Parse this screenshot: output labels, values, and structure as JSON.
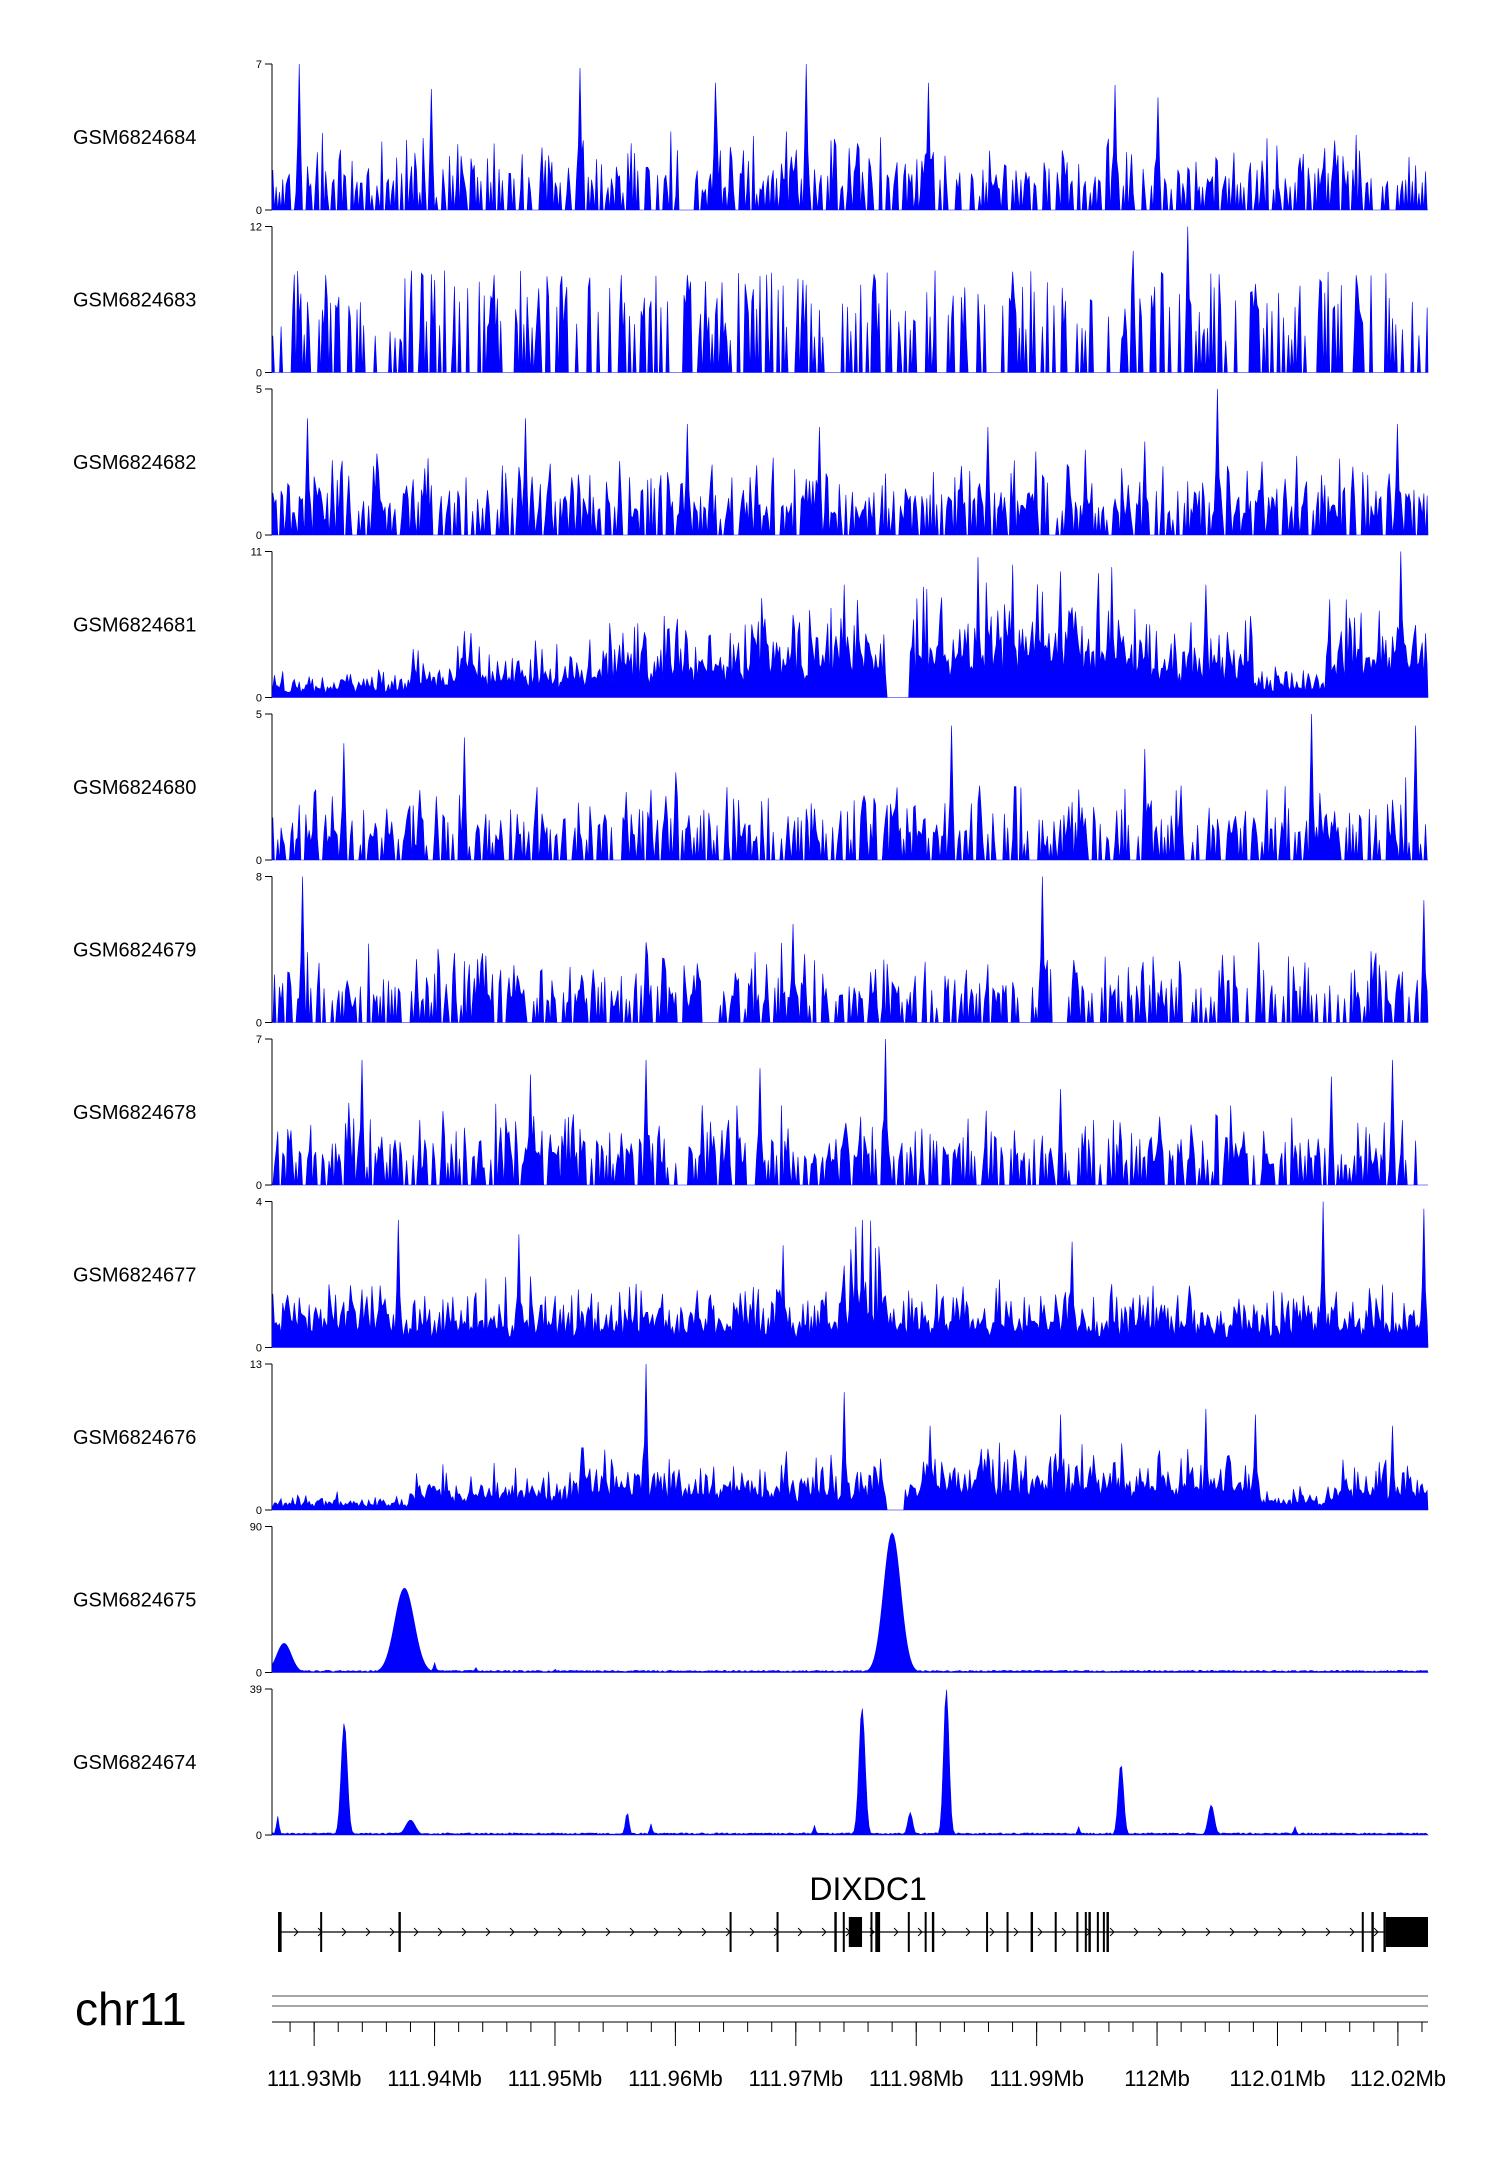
{
  "colors": {
    "signal": "#0000ff",
    "axis": "#000000",
    "gene": "#000000",
    "ideogram": "#888888"
  },
  "chart_data": {
    "type": "area",
    "title": "",
    "xlabel": "",
    "ylabel": "",
    "chromosome": "chr11",
    "xlim": [
      111.9265,
      112.0225
    ],
    "x_units": "Mb",
    "grid": false,
    "legend": "none",
    "tracks": [
      {
        "name": "GSM6824684",
        "ylim": [
          0,
          7
        ],
        "ymax_label": "7",
        "ymin_label": "0",
        "character": "sparse",
        "density": 0.55,
        "baseline": 0.12,
        "peaks": [
          [
            111.9288,
            7
          ],
          [
            111.9398,
            5.8
          ],
          [
            111.9521,
            6.8
          ],
          [
            111.9633,
            6.1
          ],
          [
            111.9708,
            7
          ],
          [
            111.981,
            6.1
          ],
          [
            111.9965,
            6
          ],
          [
            112.0001,
            5.4
          ]
        ]
      },
      {
        "name": "GSM6824683",
        "ylim": [
          0,
          12
        ],
        "ymax_label": "12",
        "ymin_label": "0",
        "character": "gapped",
        "density": 0.35,
        "baseline": 0.15,
        "peaks": [
          [
            111.931,
            8
          ],
          [
            111.945,
            8
          ],
          [
            111.9555,
            8
          ],
          [
            111.9625,
            7.5
          ],
          [
            111.9765,
            8
          ],
          [
            111.984,
            7
          ],
          [
            111.998,
            10
          ],
          [
            112.0025,
            12
          ],
          [
            112.0165,
            8
          ]
        ]
      },
      {
        "name": "GSM6824682",
        "ylim": [
          0,
          5
        ],
        "ymax_label": "5",
        "ymin_label": "0",
        "character": "sparse",
        "density": 0.6,
        "baseline": 0.12,
        "peaks": [
          [
            111.9295,
            4
          ],
          [
            111.9475,
            4
          ],
          [
            111.961,
            3.8
          ],
          [
            111.972,
            3.7
          ],
          [
            111.986,
            3.7
          ],
          [
            111.999,
            3.2
          ],
          [
            112.005,
            5
          ],
          [
            112.02,
            3.8
          ]
        ]
      },
      {
        "name": "GSM6824681",
        "ylim": [
          0,
          11
        ],
        "ymax_label": "11",
        "ymin_label": "0",
        "character": "dense",
        "density": 1.0,
        "baseline": 0.35,
        "gaps": [
          [
            111.9775,
            111.9795
          ]
        ],
        "peaks": [
          [
            111.9425,
            5
          ],
          [
            111.96,
            4.8
          ],
          [
            111.974,
            8.5
          ],
          [
            111.988,
            10
          ],
          [
            111.992,
            9.5
          ],
          [
            112.004,
            8.5
          ],
          [
            112.016,
            6
          ],
          [
            112.0202,
            11
          ]
        ],
        "regions": [
          [
            111.9265,
            111.938,
            0.12
          ],
          [
            111.938,
            111.954,
            0.28
          ],
          [
            111.954,
            111.966,
            0.4
          ],
          [
            111.966,
            111.9775,
            0.5
          ],
          [
            111.9795,
            111.9995,
            0.58
          ],
          [
            111.9995,
            112.008,
            0.4
          ],
          [
            112.008,
            112.014,
            0.15
          ],
          [
            112.014,
            112.0225,
            0.5
          ]
        ]
      },
      {
        "name": "GSM6824680",
        "ylim": [
          0,
          5
        ],
        "ymax_label": "5",
        "ymin_label": "0",
        "character": "sparse",
        "density": 0.55,
        "baseline": 0.12,
        "peaks": [
          [
            111.9325,
            4
          ],
          [
            111.9425,
            4.2
          ],
          [
            111.96,
            3
          ],
          [
            111.983,
            4.6
          ],
          [
            111.999,
            3.8
          ],
          [
            112.0128,
            5
          ],
          [
            112.0215,
            4.6
          ]
        ]
      },
      {
        "name": "GSM6824679",
        "ylim": [
          0,
          8
        ],
        "ymax_label": "8",
        "ymin_label": "0",
        "character": "sparse",
        "density": 0.55,
        "baseline": 0.12,
        "peaks": [
          [
            111.929,
            8
          ],
          [
            111.944,
            3.8
          ],
          [
            111.9575,
            4.4
          ],
          [
            111.9698,
            5.4
          ],
          [
            111.9905,
            8
          ],
          [
            112.0085,
            4.4
          ],
          [
            112.0222,
            6.7
          ]
        ]
      },
      {
        "name": "GSM6824678",
        "ylim": [
          0,
          7
        ],
        "ymax_label": "7",
        "ymin_label": "0",
        "character": "sparse",
        "density": 0.6,
        "baseline": 0.12,
        "peaks": [
          [
            111.934,
            6
          ],
          [
            111.948,
            5.3
          ],
          [
            111.9575,
            6
          ],
          [
            111.967,
            5.6
          ],
          [
            111.9775,
            7
          ],
          [
            111.992,
            4.6
          ],
          [
            112.0145,
            5.2
          ],
          [
            112.0195,
            6
          ]
        ]
      },
      {
        "name": "GSM6824677",
        "ylim": [
          0,
          4
        ],
        "ymax_label": "4",
        "ymin_label": "0",
        "character": "dense",
        "density": 0.9,
        "baseline": 0.2,
        "peaks": [
          [
            111.937,
            3.5
          ],
          [
            111.947,
            3.1
          ],
          [
            111.969,
            2.8
          ],
          [
            111.9755,
            3.5
          ],
          [
            111.993,
            2.9
          ],
          [
            112.0138,
            4
          ],
          [
            112.0222,
            3.8
          ]
        ],
        "regions": [
          [
            111.9265,
            112.0225,
            0.3
          ],
          [
            111.9735,
            111.9775,
            0.55
          ]
        ]
      },
      {
        "name": "GSM6824676",
        "ylim": [
          0,
          13
        ],
        "ymax_label": "13",
        "ymin_label": "0",
        "character": "dense",
        "density": 1.0,
        "baseline": 0.2,
        "gaps": [
          [
            111.9775,
            111.979
          ]
        ],
        "peaks": [
          [
            111.9575,
            13
          ],
          [
            111.974,
            10.5
          ],
          [
            111.9812,
            7.5
          ],
          [
            111.992,
            8.5
          ],
          [
            112.004,
            9
          ],
          [
            112.0082,
            8.5
          ],
          [
            112.0195,
            7.5
          ]
        ],
        "regions": [
          [
            111.9265,
            111.938,
            0.08
          ],
          [
            111.938,
            111.952,
            0.2
          ],
          [
            111.952,
            111.96,
            0.32
          ],
          [
            111.96,
            111.9775,
            0.24
          ],
          [
            111.979,
            112.0085,
            0.3
          ],
          [
            112.0085,
            112.014,
            0.1
          ],
          [
            112.014,
            112.0225,
            0.25
          ]
        ]
      },
      {
        "name": "GSM6824675",
        "ylim": [
          0,
          90
        ],
        "ymax_label": "90",
        "ymin_label": "0",
        "character": "broad",
        "density": 0.0,
        "baseline": 0.01,
        "broad_peaks": [
          [
            111.9275,
            18,
            0.0006
          ],
          [
            111.9375,
            52,
            0.0008
          ],
          [
            111.978,
            86,
            0.0007
          ]
        ],
        "peaks": [
          [
            111.94,
            6
          ],
          [
            111.9435,
            3
          ],
          [
            111.95,
            2
          ]
        ]
      },
      {
        "name": "GSM6824674",
        "ylim": [
          0,
          39
        ],
        "ymax_label": "39",
        "ymin_label": "0",
        "character": "broad",
        "density": 0.0,
        "baseline": 0.01,
        "broad_peaks": [
          [
            111.9325,
            30,
            0.00025
          ],
          [
            111.9755,
            34,
            0.00025
          ],
          [
            111.9825,
            39,
            0.00022
          ],
          [
            111.997,
            19,
            0.00022
          ],
          [
            112.0045,
            8,
            0.00025
          ],
          [
            111.938,
            4,
            0.0004
          ],
          [
            111.9795,
            6,
            0.0002
          ],
          [
            111.956,
            6,
            0.00015
          ]
        ],
        "peaks": [
          [
            111.927,
            5
          ],
          [
            111.958,
            3
          ],
          [
            111.9715,
            2.5
          ],
          [
            111.9935,
            2.2
          ],
          [
            112.0115,
            2.2
          ]
        ]
      }
    ],
    "gene": {
      "name": "DIXDC1",
      "strand": "+",
      "span": [
        111.927,
        112.0225
      ],
      "exons": [
        [
          111.927,
          111.9273
        ],
        [
          111.9305,
          111.9306
        ],
        [
          111.937,
          111.9372
        ],
        [
          111.9645,
          111.9646
        ],
        [
          111.9684,
          111.9685
        ],
        [
          111.9732,
          111.9734
        ],
        [
          111.9739,
          111.974
        ],
        [
          111.9744,
          111.9755
        ],
        [
          111.9762,
          111.9763
        ],
        [
          111.9766,
          111.977
        ],
        [
          111.9793,
          111.9794
        ],
        [
          111.9807,
          111.9808
        ],
        [
          111.9813,
          111.9815
        ],
        [
          111.9858,
          111.9859
        ],
        [
          111.9875,
          111.9876
        ],
        [
          111.9895,
          111.9897
        ],
        [
          111.9915,
          111.9916
        ],
        [
          111.9933,
          111.9934
        ],
        [
          111.994,
          111.9941
        ],
        [
          111.9943,
          111.9945
        ],
        [
          111.995,
          111.9951
        ],
        [
          111.9955,
          111.9956
        ],
        [
          111.9958,
          111.996
        ],
        [
          112.017,
          112.0171
        ],
        [
          112.0178,
          112.018
        ],
        [
          112.0188,
          112.019
        ],
        [
          112.019,
          112.0225
        ]
      ]
    },
    "x_ticks": [
      {
        "value": 111.93,
        "label": "111.93Mb"
      },
      {
        "value": 111.94,
        "label": "111.94Mb"
      },
      {
        "value": 111.95,
        "label": "111.95Mb"
      },
      {
        "value": 111.96,
        "label": "111.96Mb"
      },
      {
        "value": 111.97,
        "label": "111.97Mb"
      },
      {
        "value": 111.98,
        "label": "111.98Mb"
      },
      {
        "value": 111.99,
        "label": "111.99Mb"
      },
      {
        "value": 112.0,
        "label": "112Mb"
      },
      {
        "value": 112.01,
        "label": "112.01Mb"
      },
      {
        "value": 112.02,
        "label": "112.02Mb"
      }
    ]
  }
}
